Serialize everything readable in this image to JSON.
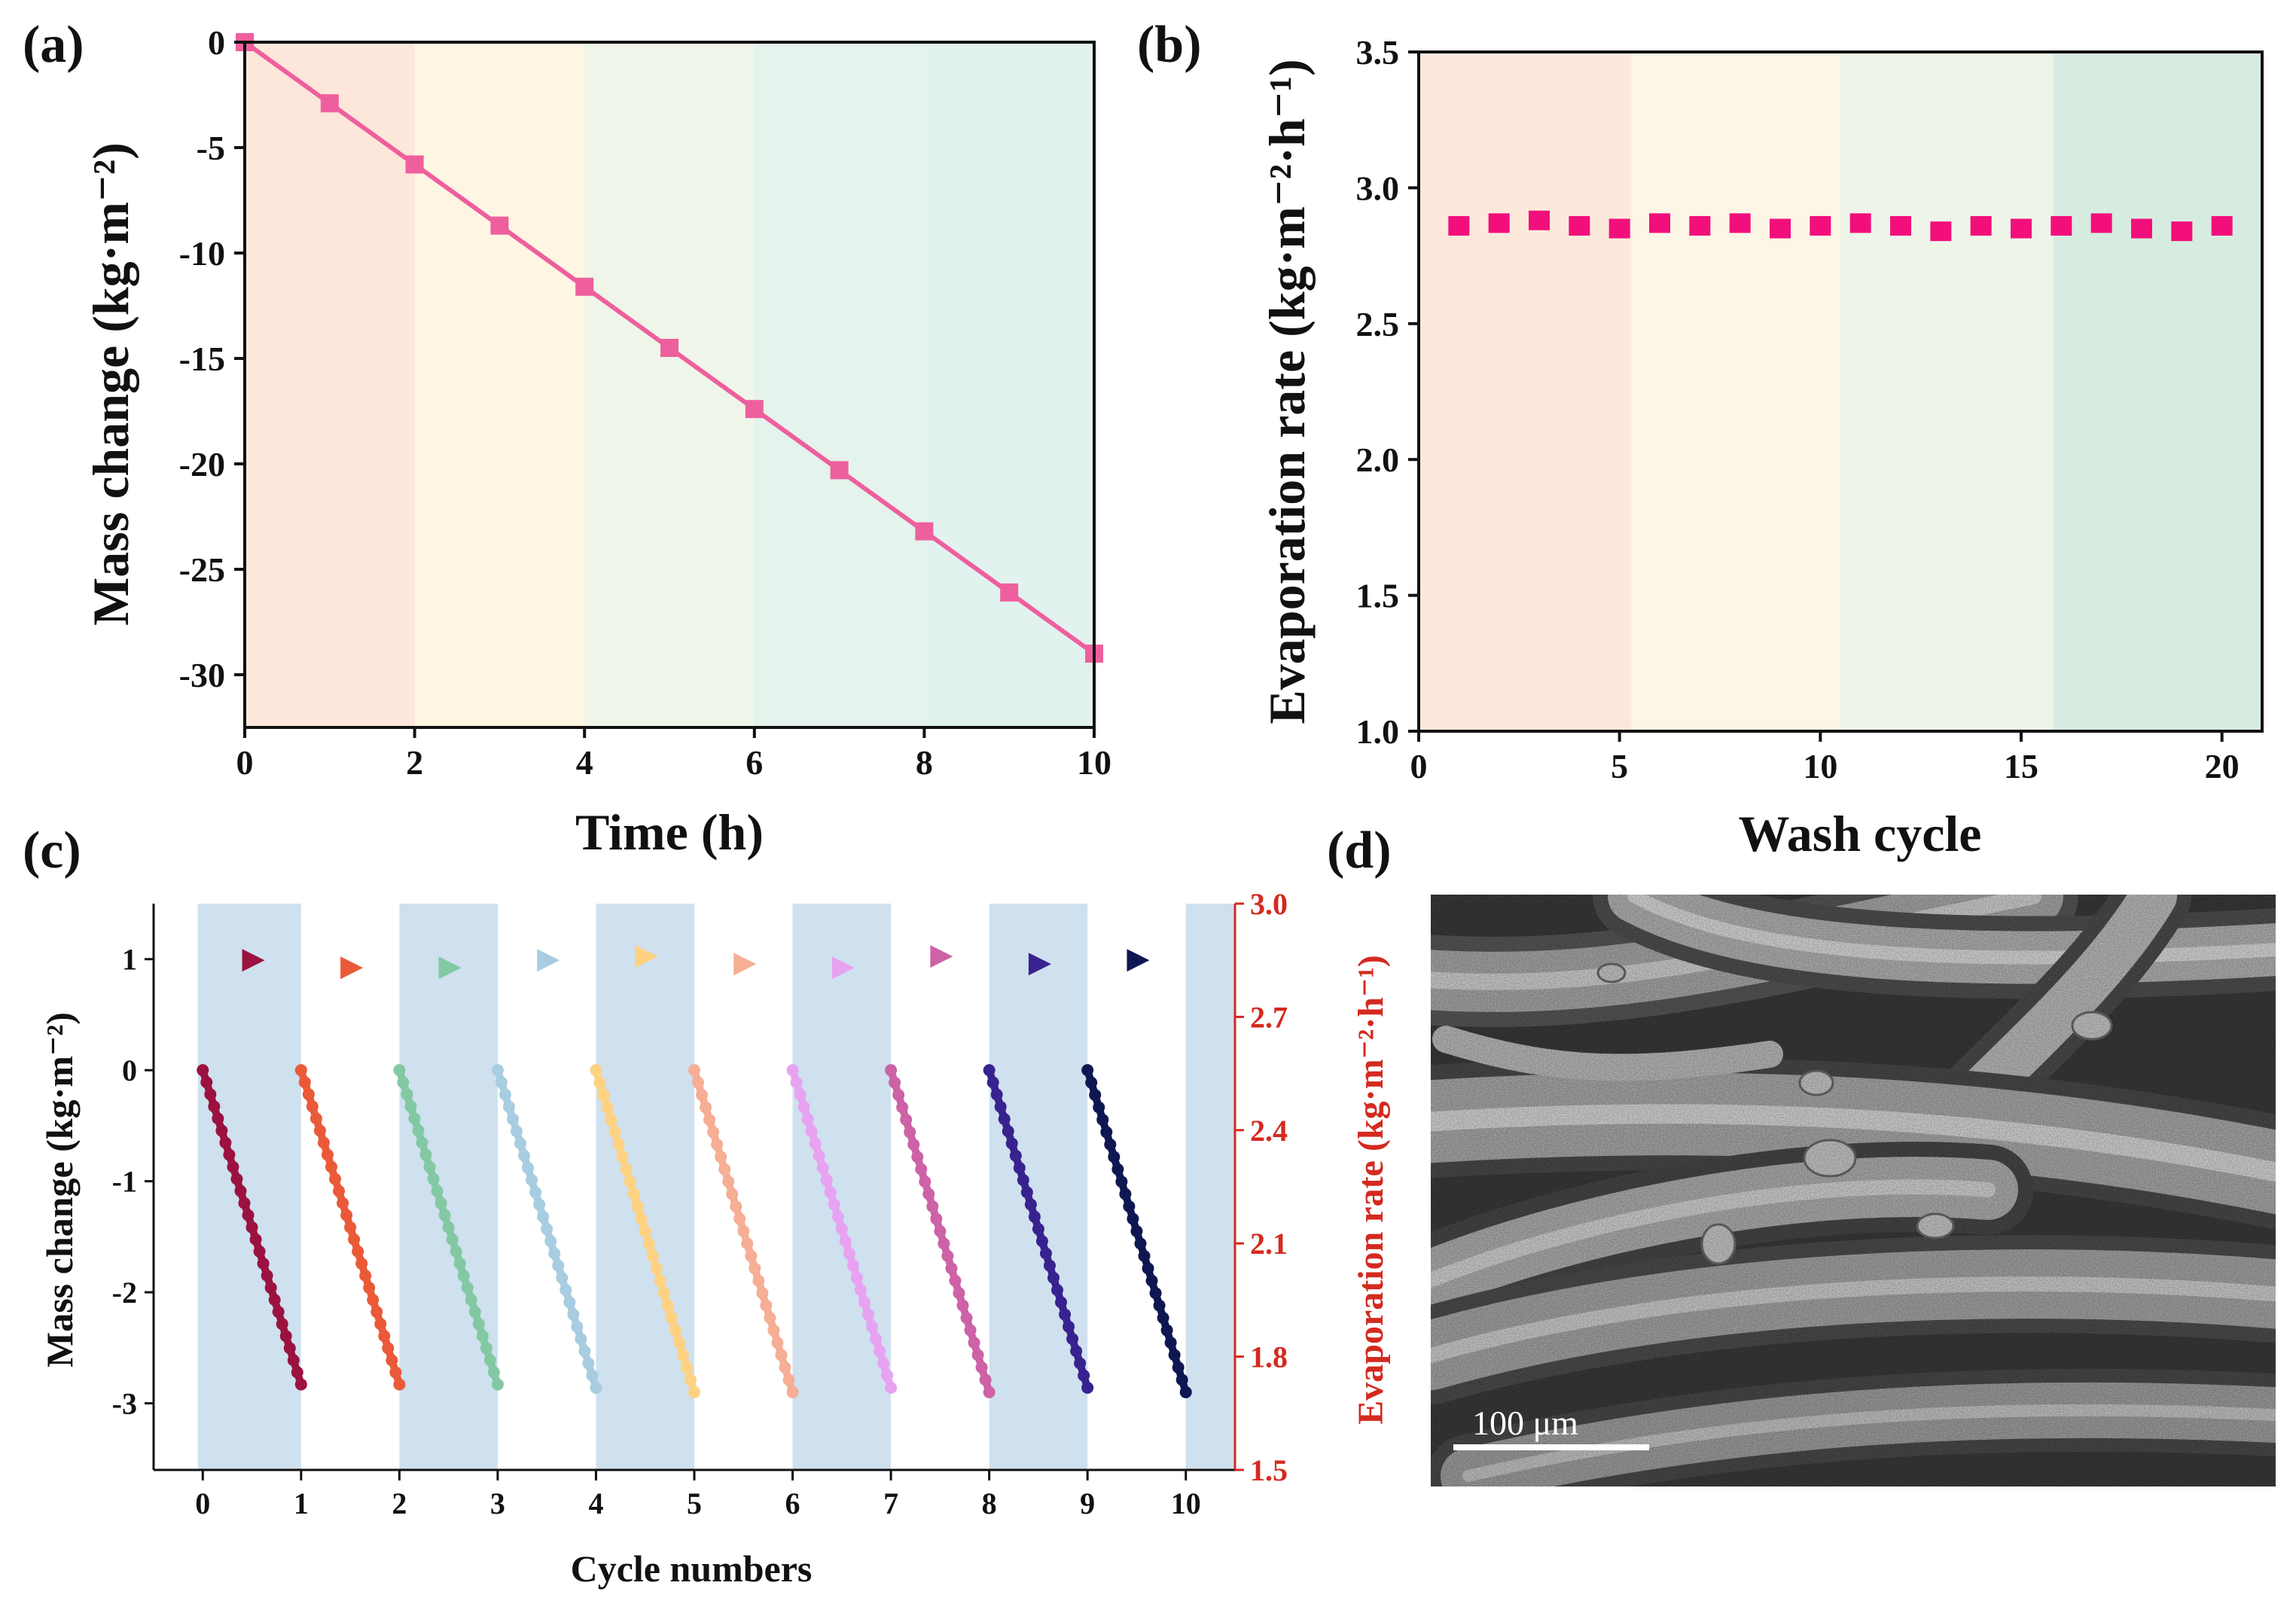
{
  "panels": {
    "a": "(a)",
    "b": "(b)",
    "c": "(c)",
    "d": "(d)"
  },
  "chart_data": [
    {
      "panel": "a",
      "type": "line",
      "xlabel": "Time (h)",
      "ylabel": "Mass change (kg·m⁻²)",
      "xlim": [
        0,
        10
      ],
      "ylim": [
        -32.5,
        0
      ],
      "xticks": [
        "0",
        "2",
        "4",
        "6",
        "8",
        "10"
      ],
      "yticks": [
        "0",
        "-5",
        "-10",
        "-15",
        "-20",
        "-25",
        "-30"
      ],
      "bands": [
        {
          "from": 0,
          "to": 2,
          "color": "#fde6da"
        },
        {
          "from": 2,
          "to": 4,
          "color": "#fef5e3"
        },
        {
          "from": 4,
          "to": 6,
          "color": "#eff6e9"
        },
        {
          "from": 6,
          "to": 8,
          "color": "#e4f3eb"
        },
        {
          "from": 8,
          "to": 10,
          "color": "#e2f2ef"
        }
      ],
      "color": "#ee5f9e",
      "x": [
        0,
        1,
        2,
        3,
        4,
        5,
        6,
        7,
        8,
        9,
        10
      ],
      "y": [
        0,
        -2.9,
        -5.8,
        -8.7,
        -11.6,
        -14.5,
        -17.4,
        -20.3,
        -23.2,
        -26.1,
        -29.0
      ]
    },
    {
      "panel": "b",
      "type": "scatter",
      "xlabel": "Wash cycle",
      "ylabel": "Evaporation rate (kg·m⁻²·h⁻¹)",
      "xlim": [
        0,
        21
      ],
      "ylim": [
        1.0,
        3.5
      ],
      "xticks": [
        "0",
        "5",
        "10",
        "15",
        "20"
      ],
      "yticks": [
        "1.0",
        "1.5",
        "2.0",
        "2.5",
        "3.0",
        "3.5"
      ],
      "bands": [
        {
          "from": 0,
          "to": 5.3,
          "color": "#fde9dc"
        },
        {
          "from": 5.3,
          "to": 10.5,
          "color": "#fdf5e6"
        },
        {
          "from": 10.5,
          "to": 15.8,
          "color": "#eef5e8"
        },
        {
          "from": 15.8,
          "to": 21,
          "color": "#d7ece0"
        }
      ],
      "color": "#f20f7c",
      "x": [
        1,
        2,
        3,
        4,
        5,
        6,
        7,
        8,
        9,
        10,
        11,
        12,
        13,
        14,
        15,
        16,
        17,
        18,
        19,
        20
      ],
      "y": [
        2.86,
        2.87,
        2.88,
        2.86,
        2.85,
        2.87,
        2.86,
        2.87,
        2.85,
        2.86,
        2.87,
        2.86,
        2.84,
        2.86,
        2.85,
        2.86,
        2.87,
        2.85,
        2.84,
        2.86
      ]
    },
    {
      "panel": "c",
      "type": "line",
      "xlabel": "Cycle numbers",
      "ylabel": "Mass change (kg·m⁻²)",
      "ylabel_right": "Evaporation rate (kg·m⁻²·h⁻¹)",
      "xlim": [
        -0.5,
        10.5
      ],
      "ylim": [
        -3.6,
        1.5
      ],
      "ylim_right": [
        1.5,
        3.0
      ],
      "xticks": [
        "0",
        "1",
        "2",
        "3",
        "4",
        "5",
        "6",
        "7",
        "8",
        "9",
        "10"
      ],
      "yticks": [
        "1",
        "0",
        "-1",
        "-2",
        "-3"
      ],
      "yticks_right": [
        "3.0",
        "2.7",
        "2.4",
        "2.1",
        "1.8",
        "1.5"
      ],
      "shaded_intervals": [
        [
          -0.05,
          1
        ],
        [
          2,
          3
        ],
        [
          4,
          5
        ],
        [
          6,
          7
        ],
        [
          8,
          9
        ],
        [
          10,
          10.5
        ]
      ],
      "shade_color": "#cfe0ee",
      "series": [
        {
          "cycle": 1,
          "x0": 0,
          "x1": 1,
          "y_end": -2.83,
          "rate": 2.85,
          "color": "#9b1240"
        },
        {
          "cycle": 2,
          "x0": 1,
          "x1": 2,
          "y_end": -2.83,
          "rate": 2.83,
          "color": "#ea5a38"
        },
        {
          "cycle": 3,
          "x0": 2,
          "x1": 3,
          "y_end": -2.83,
          "rate": 2.83,
          "color": "#82c9a3"
        },
        {
          "cycle": 4,
          "x0": 3,
          "x1": 4,
          "y_end": -2.86,
          "rate": 2.85,
          "color": "#a8cde0"
        },
        {
          "cycle": 5,
          "x0": 4,
          "x1": 5,
          "y_end": -2.9,
          "rate": 2.86,
          "color": "#fed282"
        },
        {
          "cycle": 6,
          "x0": 5,
          "x1": 6,
          "y_end": -2.9,
          "rate": 2.84,
          "color": "#f6ae95"
        },
        {
          "cycle": 7,
          "x0": 6,
          "x1": 7,
          "y_end": -2.86,
          "rate": 2.83,
          "color": "#e7a3f2"
        },
        {
          "cycle": 8,
          "x0": 7,
          "x1": 8,
          "y_end": -2.9,
          "rate": 2.86,
          "color": "#cd62a6"
        },
        {
          "cycle": 9,
          "x0": 8,
          "x1": 9,
          "y_end": -2.86,
          "rate": 2.84,
          "color": "#38228f"
        },
        {
          "cycle": 10,
          "x0": 9,
          "x1": 10,
          "y_end": -2.9,
          "rate": 2.85,
          "color": "#0f1752"
        }
      ]
    }
  ],
  "sem": {
    "scale_bar_label": "100 μm"
  }
}
